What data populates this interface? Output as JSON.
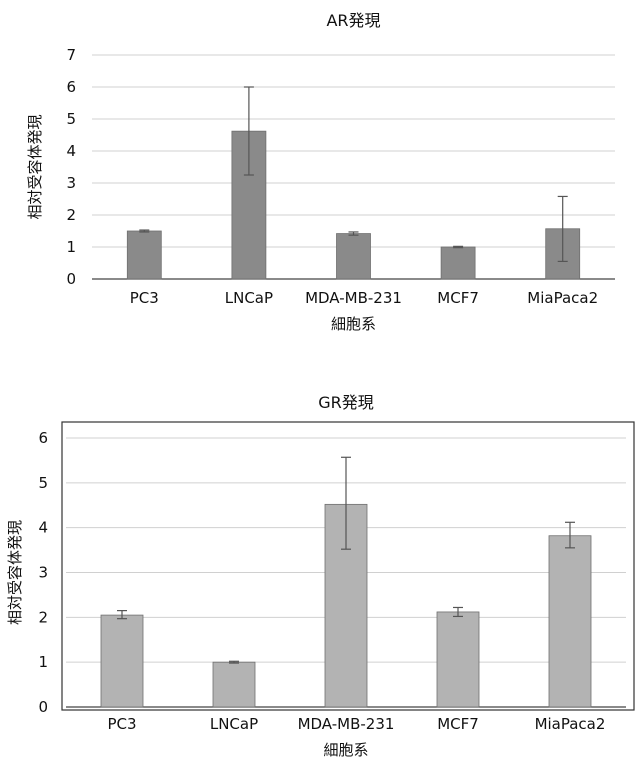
{
  "chart_data": [
    {
      "type": "bar",
      "title": "AR発現",
      "xlabel": "細胞系",
      "ylabel": "相対受容体発現",
      "categories": [
        "PC3",
        "LNCaP",
        "MDA-MB-231",
        "MCF7",
        "MiaPaca2"
      ],
      "values": [
        1.5,
        4.62,
        1.42,
        1.0,
        1.57
      ],
      "error_low": [
        1.47,
        3.25,
        1.37,
        0.98,
        0.55
      ],
      "error_high": [
        1.53,
        6.0,
        1.47,
        1.02,
        2.58
      ],
      "ylim": [
        0,
        7
      ],
      "yticks": [
        "0",
        "1",
        "2",
        "3",
        "4",
        "5",
        "6",
        "7"
      ],
      "grid": true,
      "bar_color": "#8a8a8a",
      "frame": false
    },
    {
      "type": "bar",
      "title": "GR発現",
      "xlabel": "細胞系",
      "ylabel": "相対受容体発現",
      "categories": [
        "PC3",
        "LNCaP",
        "MDA-MB-231",
        "MCF7",
        "MiaPaca2"
      ],
      "values": [
        2.05,
        1.0,
        4.52,
        2.12,
        3.82
      ],
      "error_low": [
        1.97,
        0.98,
        3.52,
        2.02,
        3.55
      ],
      "error_high": [
        2.15,
        1.02,
        5.57,
        2.22,
        4.12
      ],
      "ylim": [
        0,
        6
      ],
      "yticks": [
        "0",
        "1",
        "2",
        "3",
        "4",
        "5",
        "6"
      ],
      "grid": true,
      "bar_color": "#b3b3b3",
      "frame": true
    }
  ]
}
